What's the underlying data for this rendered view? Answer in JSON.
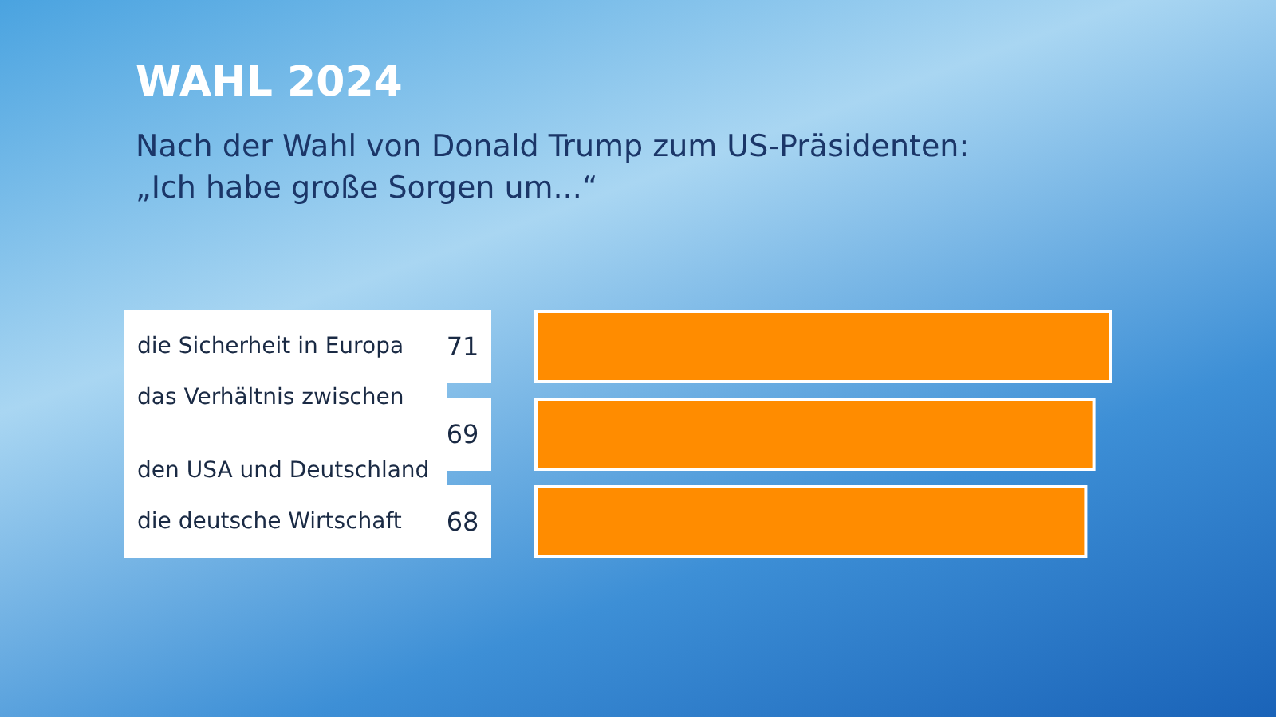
{
  "chart_data": {
    "type": "bar",
    "orientation": "horizontal",
    "title": "WAHL 2024",
    "subtitle": "Nach der Wahl von Donald Trump zum US-Präsidenten:\n„Ich habe große Sorgen um...“",
    "categories": [
      "die Sicherheit in Europa",
      "das Verhältnis zwischen den USA und Deutschland",
      "die deutsche Wirtschaft"
    ],
    "values": [
      71,
      69,
      68
    ],
    "color": "#ff8c00",
    "data_labels": true,
    "grid": false
  }
}
